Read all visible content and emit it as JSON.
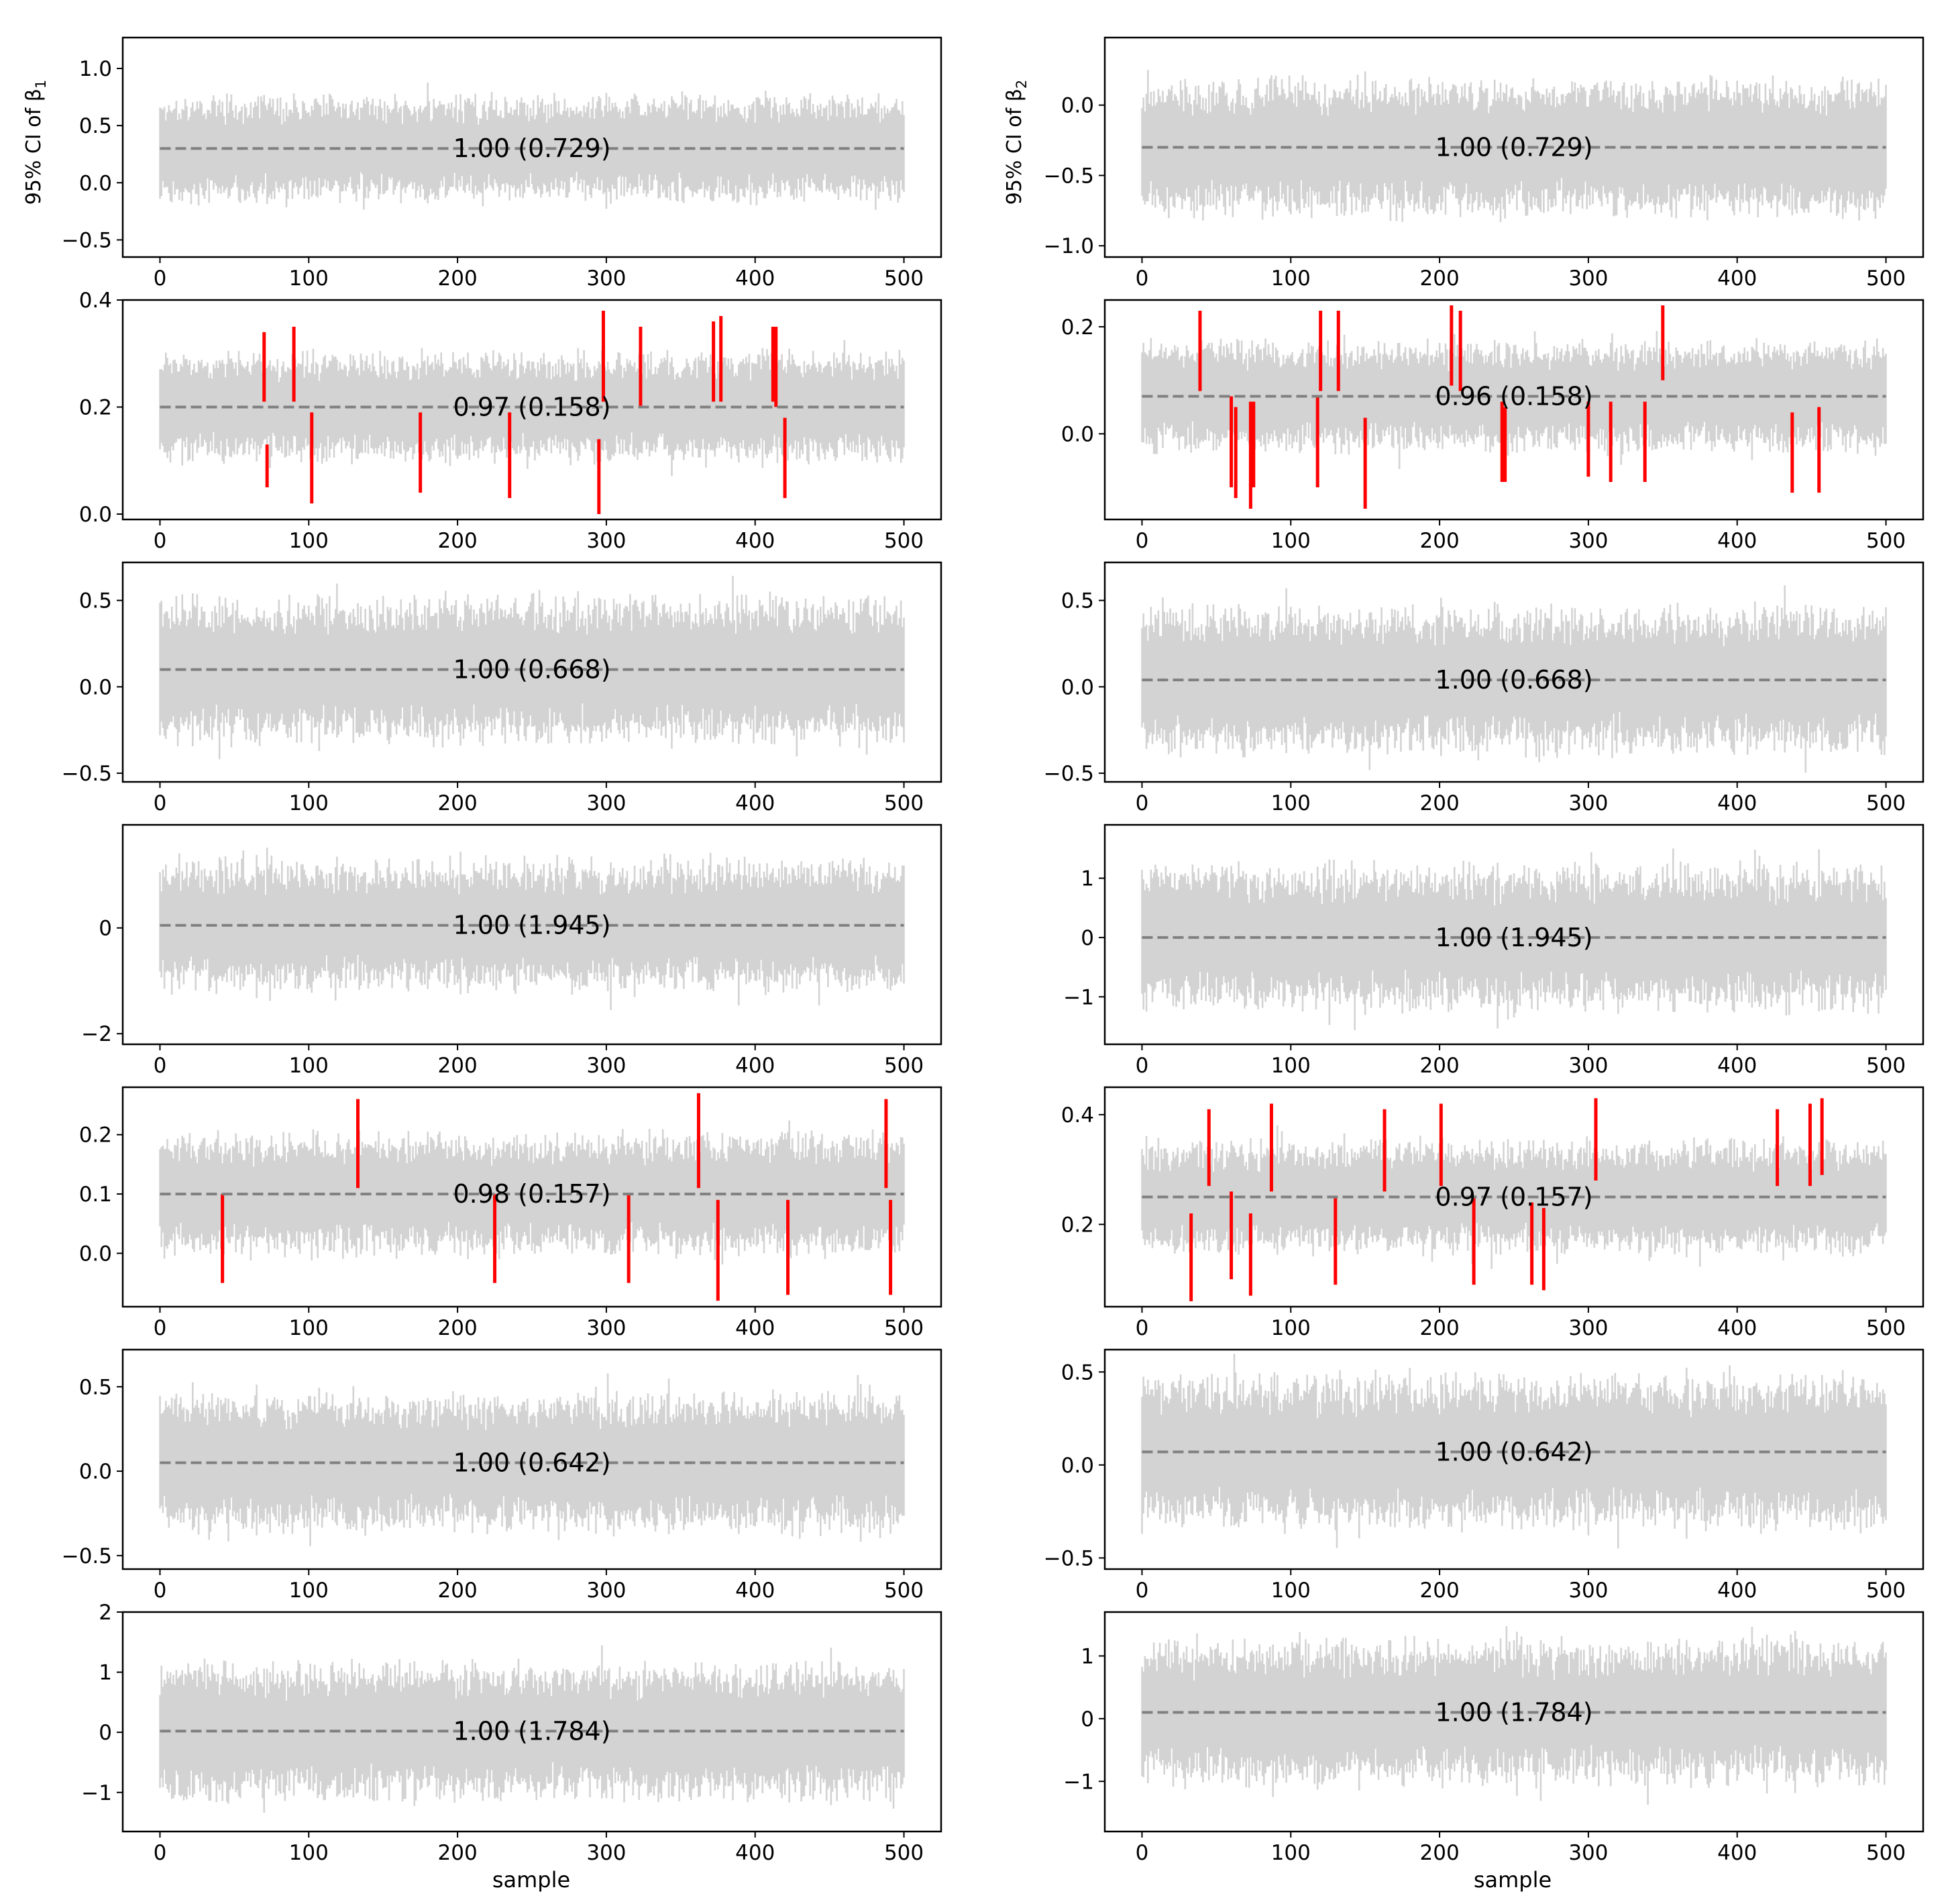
{
  "figure": {
    "xlabel": "sample",
    "ylabel_left": "95% CI of β",
    "ylabel_left_sub": "1",
    "ylabel_right": "95% CI of β",
    "ylabel_right_sub": "2",
    "n_samples": 500,
    "colors": {
      "ci_band": "#d3d3d3",
      "miss": "#ff0000",
      "true_value": "#808080",
      "frame": "#000000"
    }
  },
  "chart_data": [
    {
      "type": "line",
      "column": "beta1",
      "row": 1,
      "annotation": "1.00 (0.729)",
      "coverage": 1.0,
      "mean_width": 0.729,
      "true_value": 0.3,
      "band_center": 0.3,
      "band_halfwidth": 0.36,
      "ylim": [
        -0.65,
        1.27
      ],
      "yticks": [
        -0.5,
        0.0,
        0.5,
        1.0
      ],
      "yticklabels": [
        "−0.5",
        "0.0",
        "0.5",
        "1.0"
      ],
      "xlim": [
        -25,
        525
      ],
      "xticks": [
        0,
        100,
        200,
        300,
        400,
        500
      ],
      "xticklabels": [
        "0",
        "100",
        "200",
        "300",
        "400",
        "500"
      ],
      "misses": []
    },
    {
      "type": "line",
      "column": "beta2",
      "row": 1,
      "annotation": "1.00 (0.729)",
      "coverage": 1.0,
      "mean_width": 0.729,
      "true_value": -0.3,
      "band_center": -0.3,
      "band_halfwidth": 0.38,
      "ylim": [
        -1.08,
        0.48
      ],
      "yticks": [
        -1.0,
        -0.5,
        0.0
      ],
      "yticklabels": [
        "−1.0",
        "−0.5",
        "0.0"
      ],
      "xlim": [
        -25,
        525
      ],
      "xticks": [
        0,
        100,
        200,
        300,
        400,
        500
      ],
      "xticklabels": [
        "0",
        "100",
        "200",
        "300",
        "400",
        "500"
      ],
      "misses": []
    },
    {
      "type": "line",
      "column": "beta1",
      "row": 2,
      "annotation": "0.97 (0.158)",
      "coverage": 0.97,
      "mean_width": 0.158,
      "true_value": 0.2,
      "band_center": 0.2,
      "band_halfwidth": 0.08,
      "ylim": [
        -0.01,
        0.4
      ],
      "yticks": [
        0.0,
        0.2,
        0.4
      ],
      "yticklabels": [
        "0.0",
        "0.2",
        "0.4"
      ],
      "xlim": [
        -25,
        525
      ],
      "xticks": [
        0,
        100,
        200,
        300,
        400,
        500
      ],
      "xticklabels": [
        "0",
        "100",
        "200",
        "300",
        "400",
        "500"
      ],
      "misses": [
        [
          70,
          0.21,
          0.34
        ],
        [
          72,
          0.05,
          0.13
        ],
        [
          90,
          0.21,
          0.35
        ],
        [
          102,
          0.02,
          0.19
        ],
        [
          175,
          0.04,
          0.19
        ],
        [
          235,
          0.03,
          0.19
        ],
        [
          295,
          0.0,
          0.14
        ],
        [
          298,
          0.21,
          0.38
        ],
        [
          323,
          0.2,
          0.35
        ],
        [
          372,
          0.21,
          0.36
        ],
        [
          377,
          0.21,
          0.37
        ],
        [
          412,
          0.21,
          0.35
        ],
        [
          414,
          0.2,
          0.35
        ],
        [
          420,
          0.03,
          0.18
        ]
      ]
    },
    {
      "type": "line",
      "column": "beta2",
      "row": 2,
      "annotation": "0.96 (0.158)",
      "coverage": 0.96,
      "mean_width": 0.158,
      "true_value": 0.07,
      "band_center": 0.07,
      "band_halfwidth": 0.08,
      "ylim": [
        -0.16,
        0.25
      ],
      "yticks": [
        0.0,
        0.2
      ],
      "yticklabels": [
        "0.0",
        "0.2"
      ],
      "xlim": [
        -25,
        525
      ],
      "xticks": [
        0,
        100,
        200,
        300,
        400,
        500
      ],
      "xticklabels": [
        "0",
        "100",
        "200",
        "300",
        "400",
        "500"
      ],
      "misses": [
        [
          39,
          0.08,
          0.23
        ],
        [
          60,
          -0.1,
          0.07
        ],
        [
          63,
          -0.12,
          0.05
        ],
        [
          73,
          -0.14,
          0.06
        ],
        [
          75,
          -0.1,
          0.06
        ],
        [
          118,
          -0.1,
          0.07
        ],
        [
          120,
          0.08,
          0.23
        ],
        [
          132,
          0.08,
          0.23
        ],
        [
          150,
          -0.14,
          0.03
        ],
        [
          208,
          0.09,
          0.24
        ],
        [
          214,
          0.08,
          0.23
        ],
        [
          242,
          -0.09,
          0.06
        ],
        [
          244,
          -0.09,
          0.05
        ],
        [
          300,
          -0.08,
          0.06
        ],
        [
          315,
          -0.09,
          0.06
        ],
        [
          338,
          -0.09,
          0.06
        ],
        [
          350,
          0.1,
          0.24
        ],
        [
          437,
          -0.11,
          0.04
        ],
        [
          455,
          -0.11,
          0.05
        ]
      ]
    },
    {
      "type": "line",
      "column": "beta1",
      "row": 3,
      "annotation": "1.00 (0.668)",
      "coverage": 1.0,
      "mean_width": 0.668,
      "true_value": 0.1,
      "band_center": 0.1,
      "band_halfwidth": 0.33,
      "ylim": [
        -0.55,
        0.72
      ],
      "yticks": [
        -0.5,
        0.0,
        0.5
      ],
      "yticklabels": [
        "−0.5",
        "0.0",
        "0.5"
      ],
      "xlim": [
        -25,
        525
      ],
      "xticks": [
        0,
        100,
        200,
        300,
        400,
        500
      ],
      "xticklabels": [
        "0",
        "100",
        "200",
        "300",
        "400",
        "500"
      ],
      "misses": []
    },
    {
      "type": "line",
      "column": "beta2",
      "row": 3,
      "annotation": "1.00 (0.668)",
      "coverage": 1.0,
      "mean_width": 0.668,
      "true_value": 0.04,
      "band_center": 0.04,
      "band_halfwidth": 0.33,
      "ylim": [
        -0.55,
        0.72
      ],
      "yticks": [
        -0.5,
        0.0,
        0.5
      ],
      "yticklabels": [
        "−0.5",
        "0.0",
        "0.5"
      ],
      "xlim": [
        -25,
        525
      ],
      "xticks": [
        0,
        100,
        200,
        300,
        400,
        500
      ],
      "xticklabels": [
        "0",
        "100",
        "200",
        "300",
        "400",
        "500"
      ],
      "misses": []
    },
    {
      "type": "line",
      "column": "beta1",
      "row": 4,
      "annotation": "1.00 (1.945)",
      "coverage": 1.0,
      "mean_width": 1.945,
      "true_value": 0.05,
      "band_center": 0.05,
      "band_halfwidth": 0.95,
      "ylim": [
        -2.2,
        1.95
      ],
      "yticks": [
        -2,
        0
      ],
      "yticklabels": [
        "−2",
        "0"
      ],
      "xlim": [
        -25,
        525
      ],
      "xticks": [
        0,
        100,
        200,
        300,
        400,
        500
      ],
      "xticklabels": [
        "0",
        "100",
        "200",
        "300",
        "400",
        "500"
      ],
      "misses": []
    },
    {
      "type": "line",
      "column": "beta2",
      "row": 4,
      "annotation": "1.00 (1.945)",
      "coverage": 1.0,
      "mean_width": 1.945,
      "true_value": 0.0,
      "band_center": 0.0,
      "band_halfwidth": 0.95,
      "ylim": [
        -1.8,
        1.9
      ],
      "yticks": [
        -1,
        0,
        1
      ],
      "yticklabels": [
        "−1",
        "0",
        "1"
      ],
      "xlim": [
        -25,
        525
      ],
      "xticks": [
        0,
        100,
        200,
        300,
        400,
        500
      ],
      "xticklabels": [
        "0",
        "100",
        "200",
        "300",
        "400",
        "500"
      ],
      "misses": []
    },
    {
      "type": "line",
      "column": "beta1",
      "row": 5,
      "annotation": "0.98 (0.157)",
      "coverage": 0.98,
      "mean_width": 0.157,
      "true_value": 0.1,
      "band_center": 0.1,
      "band_halfwidth": 0.08,
      "ylim": [
        -0.09,
        0.28
      ],
      "yticks": [
        0.0,
        0.1,
        0.2
      ],
      "yticklabels": [
        "0.0",
        "0.1",
        "0.2"
      ],
      "xlim": [
        -25,
        525
      ],
      "xticks": [
        0,
        100,
        200,
        300,
        400,
        500
      ],
      "xticklabels": [
        "0",
        "100",
        "200",
        "300",
        "400",
        "500"
      ],
      "misses": [
        [
          42,
          -0.05,
          0.1
        ],
        [
          133,
          0.11,
          0.26
        ],
        [
          225,
          -0.05,
          0.1
        ],
        [
          315,
          -0.05,
          0.1
        ],
        [
          362,
          0.11,
          0.27
        ],
        [
          375,
          -0.08,
          0.09
        ],
        [
          422,
          -0.07,
          0.09
        ],
        [
          488,
          0.11,
          0.26
        ],
        [
          491,
          -0.07,
          0.09
        ]
      ]
    },
    {
      "type": "line",
      "column": "beta2",
      "row": 5,
      "annotation": "0.97 (0.157)",
      "coverage": 0.97,
      "mean_width": 0.157,
      "true_value": 0.25,
      "band_center": 0.25,
      "band_halfwidth": 0.08,
      "ylim": [
        0.05,
        0.45
      ],
      "yticks": [
        0.2,
        0.4
      ],
      "yticklabels": [
        "0.2",
        "0.4"
      ],
      "xlim": [
        -25,
        525
      ],
      "xticks": [
        0,
        100,
        200,
        300,
        400,
        500
      ],
      "xticklabels": [
        "0",
        "100",
        "200",
        "300",
        "400",
        "500"
      ],
      "misses": [
        [
          33,
          0.06,
          0.22
        ],
        [
          45,
          0.27,
          0.41
        ],
        [
          60,
          0.1,
          0.26
        ],
        [
          73,
          0.07,
          0.22
        ],
        [
          87,
          0.26,
          0.42
        ],
        [
          130,
          0.09,
          0.25
        ],
        [
          163,
          0.26,
          0.41
        ],
        [
          201,
          0.27,
          0.42
        ],
        [
          223,
          0.09,
          0.25
        ],
        [
          262,
          0.09,
          0.24
        ],
        [
          270,
          0.08,
          0.23
        ],
        [
          305,
          0.28,
          0.43
        ],
        [
          427,
          0.27,
          0.41
        ],
        [
          449,
          0.27,
          0.42
        ],
        [
          457,
          0.29,
          0.43
        ]
      ]
    },
    {
      "type": "line",
      "column": "beta1",
      "row": 6,
      "annotation": "1.00 (0.642)",
      "coverage": 1.0,
      "mean_width": 0.642,
      "true_value": 0.05,
      "band_center": 0.05,
      "band_halfwidth": 0.32,
      "ylim": [
        -0.58,
        0.72
      ],
      "yticks": [
        -0.5,
        0.0,
        0.5
      ],
      "yticklabels": [
        "−0.5",
        "0.0",
        "0.5"
      ],
      "xlim": [
        -25,
        525
      ],
      "xticks": [
        0,
        100,
        200,
        300,
        400,
        500
      ],
      "xticklabels": [
        "0",
        "100",
        "200",
        "300",
        "400",
        "500"
      ],
      "misses": []
    },
    {
      "type": "line",
      "column": "beta2",
      "row": 6,
      "annotation": "1.00 (0.642)",
      "coverage": 1.0,
      "mean_width": 0.642,
      "true_value": 0.07,
      "band_center": 0.07,
      "band_halfwidth": 0.32,
      "ylim": [
        -0.56,
        0.62
      ],
      "yticks": [
        -0.5,
        0.0,
        0.5
      ],
      "yticklabels": [
        "−0.5",
        "0.0",
        "0.5"
      ],
      "xlim": [
        -25,
        525
      ],
      "xticks": [
        0,
        100,
        200,
        300,
        400,
        500
      ],
      "xticklabels": [
        "0",
        "100",
        "200",
        "300",
        "400",
        "500"
      ],
      "misses": []
    },
    {
      "type": "line",
      "column": "beta1",
      "row": 7,
      "annotation": "1.00 (1.784)",
      "coverage": 1.0,
      "mean_width": 1.784,
      "true_value": 0.02,
      "band_center": 0.02,
      "band_halfwidth": 0.89,
      "ylim": [
        -1.65,
        2.0
      ],
      "yticks": [
        -1,
        0,
        1,
        2
      ],
      "yticklabels": [
        "−1",
        "0",
        "1",
        "2"
      ],
      "xlim": [
        -25,
        525
      ],
      "xticks": [
        0,
        100,
        200,
        300,
        400,
        500
      ],
      "xticklabels": [
        "0",
        "100",
        "200",
        "300",
        "400",
        "500"
      ],
      "misses": []
    },
    {
      "type": "line",
      "column": "beta2",
      "row": 7,
      "annotation": "1.00 (1.784)",
      "coverage": 1.0,
      "mean_width": 1.784,
      "true_value": 0.1,
      "band_center": 0.1,
      "band_halfwidth": 0.89,
      "ylim": [
        -1.8,
        1.7
      ],
      "yticks": [
        -1,
        0,
        1
      ],
      "yticklabels": [
        "−1",
        "0",
        "1"
      ],
      "xlim": [
        -25,
        525
      ],
      "xticks": [
        0,
        100,
        200,
        300,
        400,
        500
      ],
      "xticklabels": [
        "0",
        "100",
        "200",
        "300",
        "400",
        "500"
      ],
      "misses": []
    }
  ]
}
